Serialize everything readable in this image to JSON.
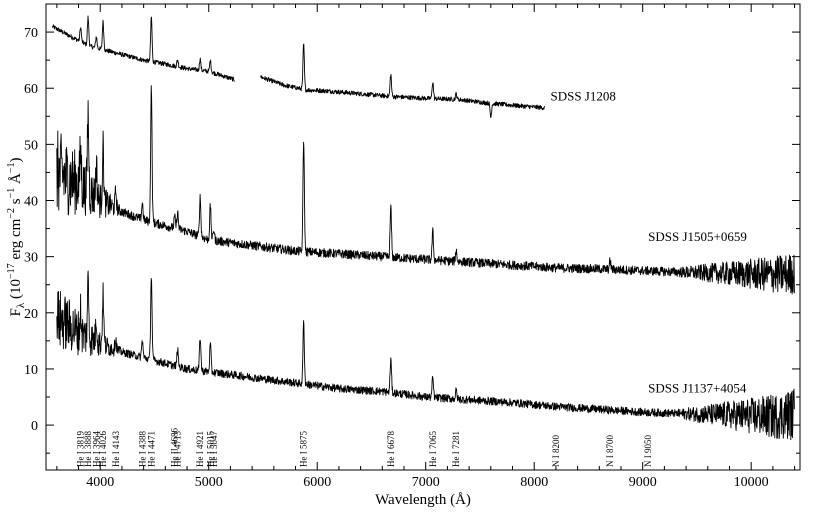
{
  "chart_data": {
    "type": "line",
    "xlabel": "Wavelength (Å)",
    "ylabel_prefix": "F",
    "ylabel_sub": "λ",
    "ylabel_main": " (10",
    "ylabel_exp1": "−17",
    "ylabel_mid": " erg cm",
    "ylabel_exp2": "−2",
    "ylabel_s": " s",
    "ylabel_exp3": "−1",
    "ylabel_A": " Å",
    "ylabel_exp4": "−1",
    "ylabel_close": ")",
    "xlim": [
      3500,
      10450
    ],
    "ylim": [
      -8,
      75
    ],
    "x_ticks": [
      4000,
      5000,
      6000,
      7000,
      8000,
      9000,
      10000
    ],
    "x_tick_labels": [
      "4000",
      "5000",
      "6000",
      "7000",
      "8000",
      "9000",
      "10000"
    ],
    "y_ticks": [
      0,
      10,
      20,
      30,
      40,
      50,
      60,
      70
    ],
    "y_tick_labels": [
      "0",
      "10",
      "20",
      "30",
      "40",
      "50",
      "60",
      "70"
    ],
    "series": [
      {
        "name": "SDSS J1208",
        "segments": [
          {
            "x": [
              3560,
              3700,
              3800,
              3900,
              4000,
              4200,
              4400,
              4600,
              4800,
              5000,
              5240
            ],
            "y": [
              71,
              69.5,
              68.5,
              67.5,
              67,
              66,
              65,
              64.3,
              63.5,
              63,
              61.5
            ]
          },
          {
            "x": [
              5480,
              5700,
              5900,
              6100,
              6400,
              6700,
              7000,
              7300,
              7600,
              7900,
              8100
            ],
            "y": [
              62,
              60.5,
              59.7,
              59.5,
              59,
              58.5,
              58.2,
              58,
              57.3,
              56.8,
              56.5
            ]
          }
        ],
        "noise": 0.4,
        "lines": [
          {
            "x": 3819,
            "h": 2.5
          },
          {
            "x": 3888,
            "h": 5
          },
          {
            "x": 3964,
            "h": 2
          },
          {
            "x": 4026,
            "h": 5
          },
          {
            "x": 4471,
            "h": 8
          },
          {
            "x": 4713,
            "h": 1.2
          },
          {
            "x": 4921,
            "h": 2
          },
          {
            "x": 5015,
            "h": 2
          },
          {
            "x": 5875,
            "h": 8
          },
          {
            "x": 6678,
            "h": 4
          },
          {
            "x": 7065,
            "h": 3
          },
          {
            "x": 7281,
            "h": 1
          },
          {
            "x": 7600,
            "h": -2.5
          }
        ],
        "label": "SDSS J1208",
        "label_x": 8150,
        "label_y": 58.5
      },
      {
        "name": "SDSS J1505+0659",
        "segments": [
          {
            "x": [
              3600,
              3700,
              3800,
              4000,
              4200,
              4400,
              4600,
              4800,
              5000,
              5400,
              5800,
              6200,
              6600,
              7000,
              7400,
              7800,
              8200,
              8600,
              9000,
              9400,
              9800,
              10200,
              10400
            ],
            "y": [
              45,
              44,
              43,
              40,
              38,
              36.5,
              35.5,
              34.5,
              33,
              32,
              31,
              30.5,
              30,
              29.5,
              29,
              28.5,
              28,
              27.8,
              27.5,
              27.2,
              27,
              26.8,
              27
            ]
          }
        ],
        "noise": 0.8,
        "noise_blue": 7,
        "noise_red": 3,
        "lines": [
          {
            "x": 3819,
            "h": 6
          },
          {
            "x": 3888,
            "h": 14
          },
          {
            "x": 3964,
            "h": 6
          },
          {
            "x": 4026,
            "h": 10
          },
          {
            "x": 4143,
            "h": 3
          },
          {
            "x": 4388,
            "h": 3
          },
          {
            "x": 4471,
            "h": 24
          },
          {
            "x": 4686,
            "h": 2
          },
          {
            "x": 4713,
            "h": 3
          },
          {
            "x": 4921,
            "h": 7
          },
          {
            "x": 5015,
            "h": 6
          },
          {
            "x": 5047,
            "h": 2
          },
          {
            "x": 5875,
            "h": 20
          },
          {
            "x": 6678,
            "h": 9
          },
          {
            "x": 7065,
            "h": 5
          },
          {
            "x": 7281,
            "h": 2
          },
          {
            "x": 8700,
            "h": 1.5
          }
        ],
        "label": "SDSS J1505+0659",
        "label_x": 9050,
        "label_y": 33.5
      },
      {
        "name": "SDSS J1137+4054",
        "segments": [
          {
            "x": [
              3600,
              3700,
              3800,
              4000,
              4200,
              4400,
              4600,
              4800,
              5000,
              5400,
              5800,
              6200,
              6600,
              7000,
              7400,
              7800,
              8200,
              8600,
              9000,
              9400,
              9800,
              10200,
              10400
            ],
            "y": [
              19,
              18,
              16.5,
              14.5,
              13,
              12,
              11,
              10,
              9.5,
              8.5,
              7.5,
              6.5,
              6,
              5,
              4.5,
              4,
              3.3,
              2.8,
              2.3,
              2,
              1.8,
              1.5,
              2
            ]
          }
        ],
        "noise": 0.7,
        "noise_blue": 5,
        "noise_red": 4,
        "lines": [
          {
            "x": 3819,
            "h": 4
          },
          {
            "x": 3888,
            "h": 10
          },
          {
            "x": 3964,
            "h": 4
          },
          {
            "x": 4026,
            "h": 9
          },
          {
            "x": 4143,
            "h": 2
          },
          {
            "x": 4388,
            "h": 3
          },
          {
            "x": 4471,
            "h": 15
          },
          {
            "x": 4713,
            "h": 3
          },
          {
            "x": 4921,
            "h": 6
          },
          {
            "x": 5015,
            "h": 5
          },
          {
            "x": 5875,
            "h": 11
          },
          {
            "x": 6678,
            "h": 6
          },
          {
            "x": 7065,
            "h": 3.5
          },
          {
            "x": 7281,
            "h": 1.5
          }
        ],
        "label": "SDSS J1137+4054",
        "label_x": 9050,
        "label_y": 6.5
      }
    ],
    "line_ids": [
      {
        "x": 3819,
        "text": "He I  3819"
      },
      {
        "x": 3888,
        "text": "He I  3888"
      },
      {
        "x": 3964,
        "text": "He I  3964"
      },
      {
        "x": 4026,
        "text": "He I  4026"
      },
      {
        "x": 4143,
        "text": "He I  4143"
      },
      {
        "x": 4388,
        "text": "He I  4388"
      },
      {
        "x": 4471,
        "text": "He I  4471"
      },
      {
        "x": 4686,
        "text": "He II  4686"
      },
      {
        "x": 4713,
        "text": "He I  4713"
      },
      {
        "x": 4921,
        "text": "He I  4921"
      },
      {
        "x": 5015,
        "text": "He I  5015"
      },
      {
        "x": 5047,
        "text": "He I  5047"
      },
      {
        "x": 5875,
        "text": "He I  5875"
      },
      {
        "x": 6678,
        "text": "He I  6678"
      },
      {
        "x": 7065,
        "text": "He I  7065"
      },
      {
        "x": 7281,
        "text": "He I  7281"
      },
      {
        "x": 8200,
        "text": "N I  8200"
      },
      {
        "x": 8700,
        "text": "N I  8700"
      },
      {
        "x": 9050,
        "text": "N I  9050"
      }
    ]
  }
}
